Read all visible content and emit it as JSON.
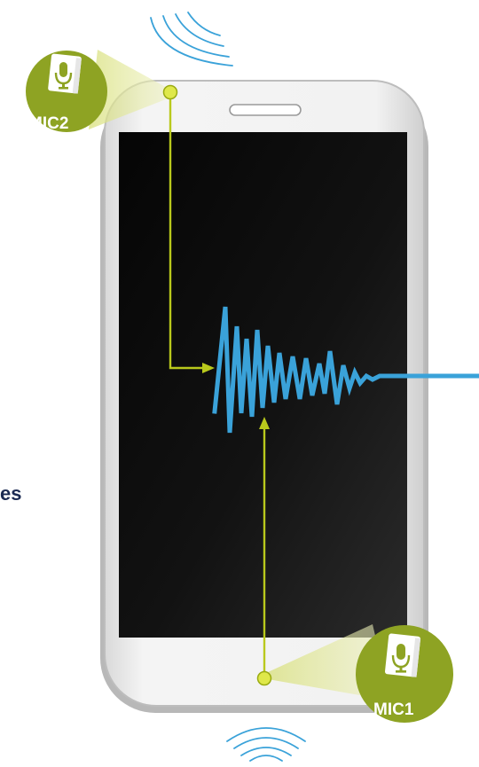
{
  "diagram": {
    "colors": {
      "mic_badge": "#8ea323",
      "connector": "#b9c91c",
      "beam": "#e4ea9a",
      "waveform": "#3aa2d9",
      "screen_dark": "#0a0a0a",
      "phone_body": "#f1f1f1",
      "label_text": "#1b2a52",
      "mic_text": "#ffffff"
    },
    "mic_top": {
      "label": "MIC2",
      "icon": "microphone-book-icon"
    },
    "mic_bottom": {
      "label": "MIC1",
      "icon": "microphone-book-icon"
    },
    "partial_label": "es"
  }
}
